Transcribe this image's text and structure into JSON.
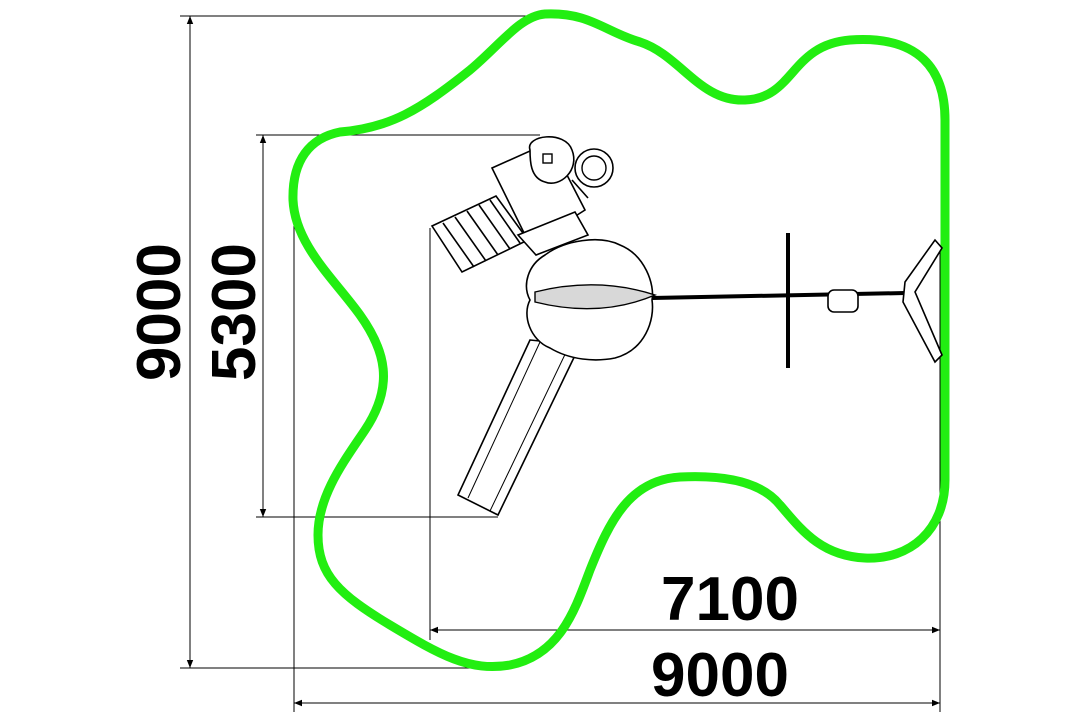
{
  "dimensions": {
    "total_height": "9000",
    "inner_height": "5300",
    "inner_width": "7100",
    "total_width": "9000"
  },
  "colors": {
    "safety_zone": "#22ee11",
    "lines": "#000000"
  }
}
